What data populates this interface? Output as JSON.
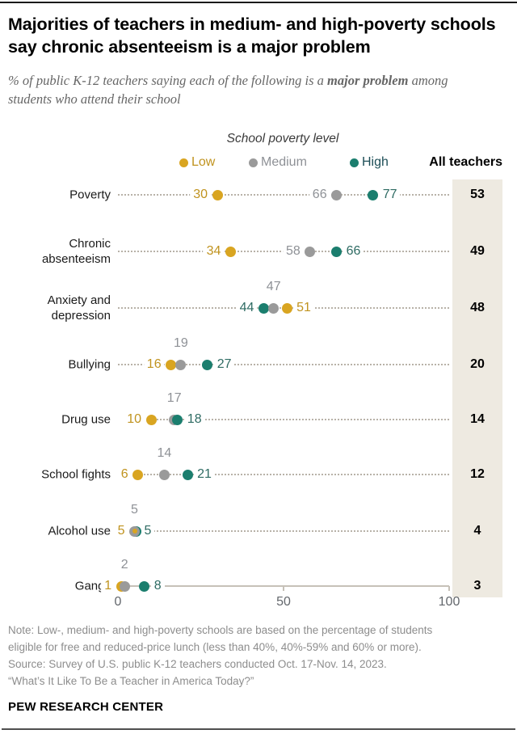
{
  "header": {
    "title": "Majorities of teachers in medium- and high-poverty schools say chronic absenteeism is a major problem",
    "subtitle_prefix": "% of public K-12 teachers saying each of the following is a ",
    "subtitle_bold": "major problem",
    "subtitle_suffix": " among students who attend their school"
  },
  "legend": {
    "title": "School poverty level",
    "all_teachers_label": "All teachers",
    "items": [
      {
        "label": "Low",
        "color": "#d9a521",
        "text_color": "#c0931f"
      },
      {
        "label": "Medium",
        "color": "#9a9a9a",
        "text_color": "#8e9196"
      },
      {
        "label": "High",
        "color": "#1b7e6e",
        "text_color": "#1d4e57"
      }
    ]
  },
  "chart_data": {
    "type": "scatter",
    "title": "Majorities of teachers in medium- and high-poverty schools say chronic absenteeism is a major problem",
    "subtitle": "% of public K-12 teachers saying each of the following is a major problem among students who attend their school",
    "xlim": [
      0,
      100
    ],
    "xticks": [
      0,
      50,
      100
    ],
    "grid": false,
    "legend_position": "top",
    "categories": [
      "Poverty",
      "Chronic\nabsenteeism",
      "Anxiety and\ndepression",
      "Bullying",
      "Drug use",
      "School fights",
      "Alcohol use",
      "Gangs"
    ],
    "series": [
      {
        "name": "Low",
        "color": "#d9a521",
        "label_color": "#c0931f",
        "values": [
          30,
          34,
          51,
          16,
          10,
          6,
          5,
          1
        ]
      },
      {
        "name": "Medium",
        "color": "#9a9a9a",
        "label_color": "#8e9196",
        "values": [
          66,
          58,
          47,
          19,
          17,
          14,
          5,
          2
        ]
      },
      {
        "name": "High",
        "color": "#1b7e6e",
        "label_color": "#2e6b63",
        "values": [
          77,
          66,
          44,
          27,
          18,
          21,
          5,
          8
        ]
      }
    ],
    "all_teachers_values": [
      53,
      49,
      48,
      20,
      14,
      12,
      4,
      3
    ],
    "row_layout": [
      {
        "middle_label": "inline",
        "leader": true
      },
      {
        "middle_label": "inline",
        "leader": true
      },
      {
        "middle_label": "above",
        "leader": true
      },
      {
        "middle_label": "above",
        "leader": true
      },
      {
        "middle_label": "above",
        "leader": false
      },
      {
        "middle_label": "above",
        "leader": false
      },
      {
        "middle_label": "above",
        "leader": false
      },
      {
        "middle_label": "above",
        "leader": false,
        "axis": true
      }
    ]
  },
  "footer": {
    "note": "Note: Low-, medium- and high-poverty schools are based on the percentage of students\neligible for free and reduced-price lunch (less than 40%, 40%-59% and 60% or more).\nSource: Survey of U.S. public K-12 teachers conducted Oct. 17-Nov. 14, 2023.\n“What’s It Like To Be a Teacher in America Today?”",
    "brand": "PEW RESEARCH CENTER"
  }
}
